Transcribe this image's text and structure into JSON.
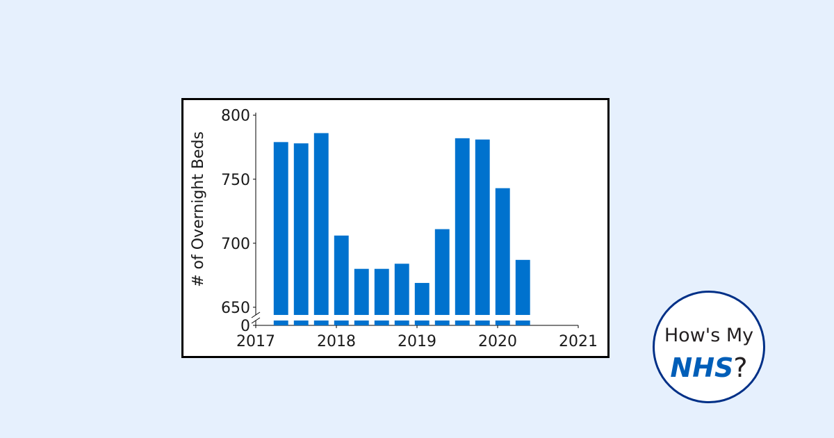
{
  "chart_data": {
    "type": "bar",
    "ylabel": "# of Overnight Beds",
    "xlabel": "",
    "x_ticks": [
      "2017",
      "2018",
      "2019",
      "2020",
      "2021"
    ],
    "xlim": [
      2017,
      2021
    ],
    "y_ticks_upper": [
      "650",
      "700",
      "750",
      "800"
    ],
    "y_ticks_lower": [
      "0"
    ],
    "ylim_upper": [
      644,
      802
    ],
    "ylim_lower": [
      0,
      644
    ],
    "broken_axis": true,
    "grid": false,
    "color": "#0072ce",
    "points": [
      {
        "x": "2017 Q2",
        "value": 779
      },
      {
        "x": "2017 Q3",
        "value": 778
      },
      {
        "x": "2017 Q4",
        "value": 786
      },
      {
        "x": "2018 Q1",
        "value": 706
      },
      {
        "x": "2018 Q2",
        "value": 680
      },
      {
        "x": "2018 Q3",
        "value": 680
      },
      {
        "x": "2018 Q4",
        "value": 684
      },
      {
        "x": "2019 Q1",
        "value": 669
      },
      {
        "x": "2019 Q2",
        "value": 711
      },
      {
        "x": "2019 Q3",
        "value": 782
      },
      {
        "x": "2019 Q4",
        "value": 781
      },
      {
        "x": "2020 Q1",
        "value": 743
      },
      {
        "x": "2020 Q2",
        "value": 687
      }
    ]
  },
  "badge": {
    "line1": "How's My",
    "brand": "NHS",
    "suffix": "?",
    "border_color": "#003087",
    "brand_color": "#005eb8"
  },
  "colors": {
    "background": "#e6f0fd",
    "bar": "#0072ce"
  }
}
